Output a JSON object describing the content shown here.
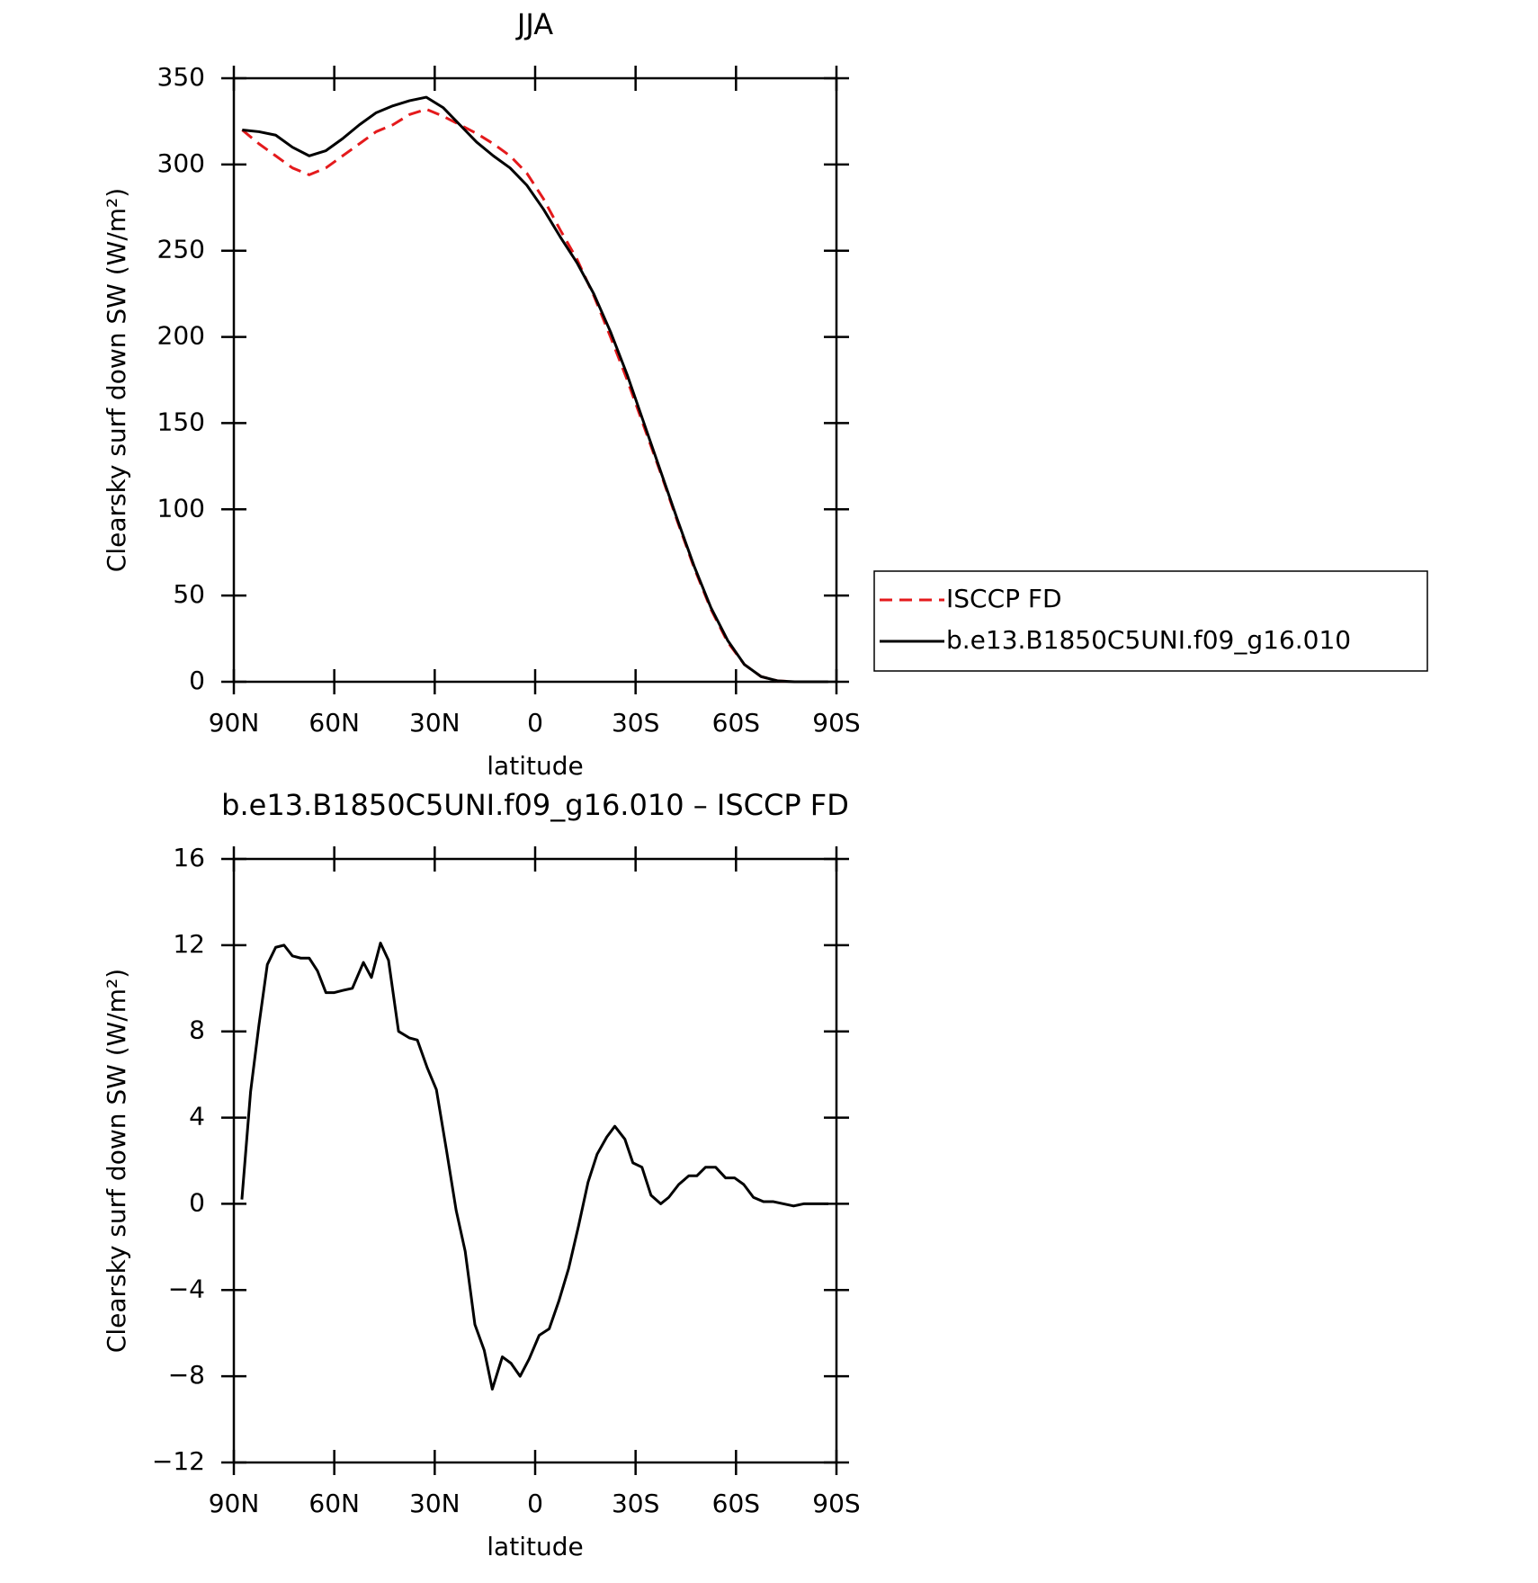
{
  "chart_data": [
    {
      "type": "line",
      "title": "JJA",
      "xlabel": "latitude",
      "ylabel": "Clearsky surf down SW (W/m²)",
      "x": [
        87.5,
        82.5,
        77.5,
        72.5,
        67.5,
        62.5,
        57.5,
        52.5,
        47.5,
        42.5,
        37.5,
        32.5,
        27.5,
        22.5,
        17.5,
        12.5,
        7.5,
        2.5,
        -2.5,
        -7.5,
        -12.5,
        -17.5,
        -22.5,
        -27.5,
        -32.5,
        -37.5,
        -42.5,
        -47.5,
        -52.5,
        -57.5,
        -62.5,
        -67.5,
        -72.5,
        -77.5,
        -82.5,
        -87.5
      ],
      "series": [
        {
          "name": "ISCCP FD",
          "color": "#e41a1c",
          "line_style": "dashed",
          "values": [
            320,
            312,
            305,
            298,
            294,
            298,
            305,
            312,
            319,
            323,
            329,
            332,
            328,
            323,
            318,
            312,
            305,
            295,
            280,
            262,
            245,
            224,
            200,
            175,
            148,
            121,
            93,
            66,
            42,
            23,
            10,
            3,
            0.5,
            0,
            0,
            0
          ]
        },
        {
          "name": "b.e13.B1850C5UNI.f09_g16.010",
          "color": "#000000",
          "line_style": "solid",
          "values": [
            320,
            319,
            317,
            310,
            305,
            308,
            315,
            323,
            330,
            334,
            337,
            339,
            333,
            323,
            313,
            305,
            298,
            288,
            274,
            258,
            243,
            225,
            203,
            178,
            150,
            122,
            94,
            67,
            43,
            24,
            10,
            3,
            0.5,
            0,
            0,
            0
          ]
        }
      ],
      "xlim": [
        90,
        -90
      ],
      "xticks": [
        {
          "value": 90,
          "label": "90N"
        },
        {
          "value": 60,
          "label": "60N"
        },
        {
          "value": 30,
          "label": "30N"
        },
        0,
        {
          "value": -30,
          "label": "30S"
        },
        {
          "value": -60,
          "label": "60S"
        },
        {
          "value": -90,
          "label": "90S"
        }
      ],
      "ylim": [
        0,
        350
      ],
      "yticks": [
        0,
        50,
        100,
        150,
        200,
        250,
        300,
        350
      ],
      "legend": "right"
    },
    {
      "type": "line",
      "title": "b.e13.B1850C5UNI.f09_g16.010 – ISCCP FD",
      "xlabel": "latitude",
      "ylabel": "Clearsky surf down SW (W/m²)",
      "x": [
        87.6,
        85,
        82.5,
        80,
        77.5,
        75,
        72.5,
        70,
        67.5,
        65,
        62.5,
        60,
        57.5,
        54.6,
        51.3,
        48.9,
        46.2,
        43.8,
        40.8,
        37.6,
        35.2,
        32.2,
        29.5,
        26.5,
        23.6,
        20.9,
        18,
        15.2,
        12.8,
        9.8,
        7.2,
        4.5,
        1.8,
        -1.2,
        -4.2,
        -7.1,
        -10,
        -13,
        -15.8,
        -18.5,
        -21.4,
        -23.8,
        -26.8,
        -29.2,
        -31.9,
        -34.6,
        -37.5,
        -39.9,
        -42.9,
        -45.9,
        -48.3,
        -50.9,
        -53.9,
        -56.9,
        -59.6,
        -62.3,
        -65.2,
        -68.2,
        -71.2,
        -74.2,
        -77.2,
        -80.2,
        -83.1,
        -86.1,
        -87.6
      ],
      "values": [
        0.2,
        5.2,
        8.3,
        11.1,
        11.9,
        12.0,
        11.5,
        11.4,
        11.4,
        10.8,
        9.8,
        9.8,
        9.9,
        10.0,
        11.2,
        10.5,
        12.1,
        11.3,
        8.0,
        7.7,
        7.6,
        6.3,
        5.3,
        2.5,
        -0.3,
        -2.2,
        -5.6,
        -6.8,
        -8.6,
        -7.1,
        -7.4,
        -8.0,
        -7.2,
        -6.1,
        -5.8,
        -4.5,
        -3.0,
        -1.0,
        1.0,
        2.3,
        3.1,
        3.6,
        3.0,
        1.9,
        1.7,
        0.4,
        0.0,
        0.3,
        0.9,
        1.3,
        1.3,
        1.7,
        1.7,
        1.2,
        1.2,
        0.9,
        0.3,
        0.1,
        0.1,
        0.0,
        -0.1,
        0.0,
        0.0,
        0.0,
        0.0
      ],
      "color": "#000000",
      "xlim": [
        90,
        -90
      ],
      "xticks": [
        {
          "value": 90,
          "label": "90N"
        },
        {
          "value": 60,
          "label": "60N"
        },
        {
          "value": 30,
          "label": "30N"
        },
        0,
        {
          "value": -30,
          "label": "30S"
        },
        {
          "value": -60,
          "label": "60S"
        },
        {
          "value": -90,
          "label": "90S"
        }
      ],
      "ylim": [
        -12,
        16
      ],
      "yticks": [
        {
          "value": -12,
          "label": "−12"
        },
        {
          "value": -8,
          "label": "−8"
        },
        {
          "value": -4,
          "label": "−4"
        },
        0,
        4,
        8,
        12,
        16
      ]
    }
  ]
}
